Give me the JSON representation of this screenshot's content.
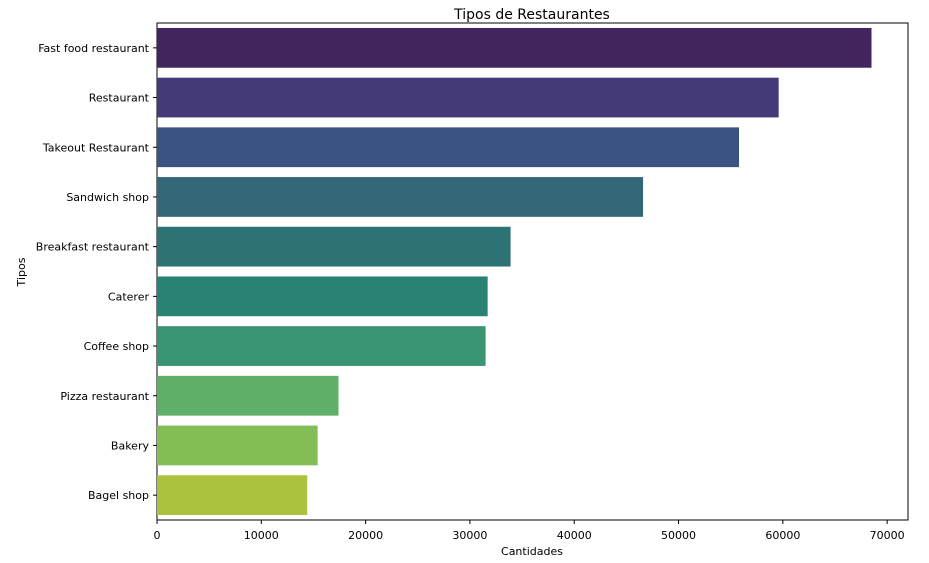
{
  "chart_data": {
    "type": "bar",
    "orientation": "horizontal",
    "title": "Tipos de Restaurantes",
    "xlabel": "Cantidades",
    "ylabel": "Tipos",
    "xlim": [
      0,
      72000
    ],
    "xticks": [
      0,
      10000,
      20000,
      30000,
      40000,
      50000,
      60000,
      70000
    ],
    "grid": false,
    "categories": [
      "Fast food restaurant",
      "Restaurant",
      "Takeout Restaurant",
      "Sandwich shop",
      "Breakfast restaurant",
      "Caterer",
      "Coffee shop",
      "Pizza restaurant",
      "Bakery",
      "Bagel shop"
    ],
    "values": [
      68500,
      59600,
      55800,
      46600,
      33900,
      31700,
      31500,
      17400,
      15400,
      14400
    ],
    "colors": [
      "#42245e",
      "#443a78",
      "#3b5380",
      "#336677",
      "#2d7376",
      "#2a8275",
      "#3b9472",
      "#5faf68",
      "#82bd56",
      "#abc23e"
    ]
  }
}
